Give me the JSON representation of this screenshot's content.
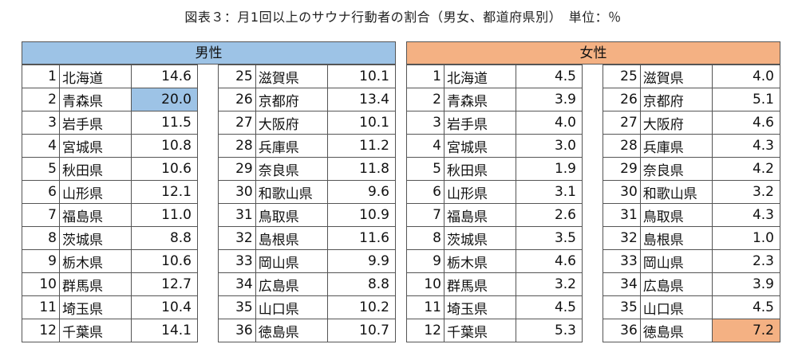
{
  "title": "図表３：月1回以上のサウナ行動者の割合（男女、都道府県別）　単位：％",
  "male": {
    "label": "男性",
    "highlight_color": "#9dc3e6",
    "highlight_rank": 2,
    "left": [
      {
        "rank": "1",
        "pref": "北海道",
        "value": "14.6"
      },
      {
        "rank": "2",
        "pref": "青森県",
        "value": "20.0"
      },
      {
        "rank": "3",
        "pref": "岩手県",
        "value": "11.5"
      },
      {
        "rank": "4",
        "pref": "宮城県",
        "value": "10.8"
      },
      {
        "rank": "5",
        "pref": "秋田県",
        "value": "10.6"
      },
      {
        "rank": "6",
        "pref": "山形県",
        "value": "12.1"
      },
      {
        "rank": "7",
        "pref": "福島県",
        "value": "11.0"
      },
      {
        "rank": "8",
        "pref": "茨城県",
        "value": "8.8"
      },
      {
        "rank": "9",
        "pref": "栃木県",
        "value": "10.6"
      },
      {
        "rank": "10",
        "pref": "群馬県",
        "value": "12.7"
      },
      {
        "rank": "11",
        "pref": "埼玉県",
        "value": "10.4"
      },
      {
        "rank": "12",
        "pref": "千葉県",
        "value": "14.1"
      }
    ],
    "right": [
      {
        "rank": "25",
        "pref": "滋賀県",
        "value": "10.1"
      },
      {
        "rank": "26",
        "pref": "京都府",
        "value": "13.4"
      },
      {
        "rank": "27",
        "pref": "大阪府",
        "value": "10.1"
      },
      {
        "rank": "28",
        "pref": "兵庫県",
        "value": "11.2"
      },
      {
        "rank": "29",
        "pref": "奈良県",
        "value": "11.8"
      },
      {
        "rank": "30",
        "pref": "和歌山県",
        "value": "9.6"
      },
      {
        "rank": "31",
        "pref": "鳥取県",
        "value": "10.9"
      },
      {
        "rank": "32",
        "pref": "島根県",
        "value": "11.6"
      },
      {
        "rank": "33",
        "pref": "岡山県",
        "value": "9.9"
      },
      {
        "rank": "34",
        "pref": "広島県",
        "value": "8.8"
      },
      {
        "rank": "35",
        "pref": "山口県",
        "value": "10.2"
      },
      {
        "rank": "36",
        "pref": "徳島県",
        "value": "10.7"
      }
    ]
  },
  "female": {
    "label": "女性",
    "highlight_color": "#f4b183",
    "highlight_rank": 36,
    "left": [
      {
        "rank": "1",
        "pref": "北海道",
        "value": "4.5"
      },
      {
        "rank": "2",
        "pref": "青森県",
        "value": "3.9"
      },
      {
        "rank": "3",
        "pref": "岩手県",
        "value": "4.0"
      },
      {
        "rank": "4",
        "pref": "宮城県",
        "value": "3.0"
      },
      {
        "rank": "5",
        "pref": "秋田県",
        "value": "1.9"
      },
      {
        "rank": "6",
        "pref": "山形県",
        "value": "3.1"
      },
      {
        "rank": "7",
        "pref": "福島県",
        "value": "2.6"
      },
      {
        "rank": "8",
        "pref": "茨城県",
        "value": "3.5"
      },
      {
        "rank": "9",
        "pref": "栃木県",
        "value": "4.6"
      },
      {
        "rank": "10",
        "pref": "群馬県",
        "value": "3.2"
      },
      {
        "rank": "11",
        "pref": "埼玉県",
        "value": "4.5"
      },
      {
        "rank": "12",
        "pref": "千葉県",
        "value": "5.3"
      }
    ],
    "right": [
      {
        "rank": "25",
        "pref": "滋賀県",
        "value": "4.0"
      },
      {
        "rank": "26",
        "pref": "京都府",
        "value": "5.1"
      },
      {
        "rank": "27",
        "pref": "大阪府",
        "value": "4.6"
      },
      {
        "rank": "28",
        "pref": "兵庫県",
        "value": "4.3"
      },
      {
        "rank": "29",
        "pref": "奈良県",
        "value": "4.2"
      },
      {
        "rank": "30",
        "pref": "和歌山県",
        "value": "3.2"
      },
      {
        "rank": "31",
        "pref": "鳥取県",
        "value": "4.3"
      },
      {
        "rank": "32",
        "pref": "島根県",
        "value": "1.0"
      },
      {
        "rank": "33",
        "pref": "岡山県",
        "value": "2.3"
      },
      {
        "rank": "34",
        "pref": "広島県",
        "value": "3.9"
      },
      {
        "rank": "35",
        "pref": "山口県",
        "value": "4.5"
      },
      {
        "rank": "36",
        "pref": "徳島県",
        "value": "7.2"
      }
    ]
  }
}
